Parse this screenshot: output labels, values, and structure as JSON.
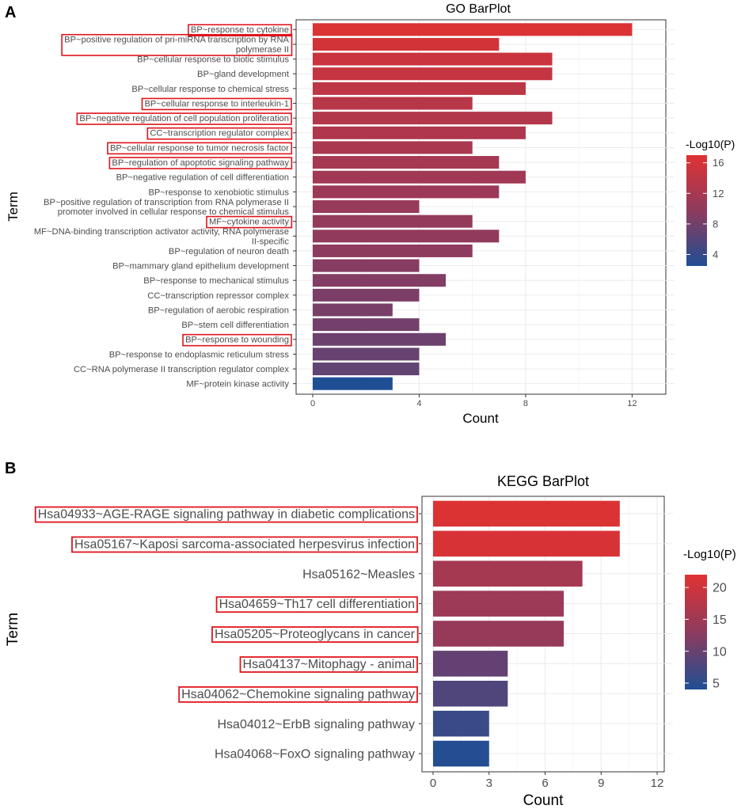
{
  "chart_data": [
    {
      "panel": "A",
      "type": "bar",
      "orientation": "horizontal",
      "title": "GO BarPlot",
      "xlabel": "Count",
      "ylabel": "Term",
      "xlim": [
        0,
        13
      ],
      "xticks": [
        0,
        4,
        8,
        12
      ],
      "legend": {
        "title": "-Log10(P)",
        "ticks": [
          4,
          8,
          12,
          16
        ],
        "range": [
          2.5,
          17
        ]
      },
      "categories": [
        [
          "BP~response to cytokine"
        ],
        [
          "BP~positive regulation of pri-miRNA transcription by RNA",
          "polymerase II"
        ],
        [
          "BP~cellular response to biotic stimulus"
        ],
        [
          "BP~gland development"
        ],
        [
          "BP~cellular response to chemical stress"
        ],
        [
          "BP~cellular response to interleukin-1"
        ],
        [
          "BP~negative regulation of cell population proliferation"
        ],
        [
          "CC~transcription regulator complex"
        ],
        [
          "BP~cellular response to tumor necrosis factor"
        ],
        [
          "BP~regulation of apoptotic signaling pathway"
        ],
        [
          "BP~negative regulation of cell differentiation"
        ],
        [
          "BP~response to xenobiotic stimulus"
        ],
        [
          "BP~positive regulation of transcription from RNA polymerase II",
          "promoter involved in cellular response to chemical stimulus"
        ],
        [
          "MF~cytokine activity"
        ],
        [
          "MF~DNA-binding transcription activator activity, RNA polymerase",
          "II-specific"
        ],
        [
          "BP~regulation of neuron death"
        ],
        [
          "BP~mammary gland epithelium development"
        ],
        [
          "BP~response to mechanical stimulus"
        ],
        [
          "CC~transcription repressor complex"
        ],
        [
          "BP~regulation of aerobic respiration"
        ],
        [
          "BP~stem cell differentiation"
        ],
        [
          "BP~response to wounding"
        ],
        [
          "BP~response to endoplasmic reticulum stress"
        ],
        [
          "CC~RNA polymerase II transcription regulator complex"
        ],
        [
          "MF~protein kinase activity"
        ]
      ],
      "values": [
        12,
        7,
        9,
        9,
        8,
        6,
        9,
        8,
        6,
        7,
        8,
        7,
        4,
        6,
        7,
        6,
        4,
        5,
        4,
        3,
        4,
        5,
        4,
        4,
        3
      ],
      "neg_log10_p": [
        16.6,
        15.8,
        15.0,
        14.5,
        13.9,
        13.4,
        13.0,
        12.6,
        12.2,
        11.8,
        11.4,
        11.0,
        10.6,
        10.3,
        10.0,
        9.7,
        9.3,
        9.0,
        8.6,
        8.3,
        8.0,
        7.6,
        7.2,
        6.8,
        2.5
      ],
      "highlighted": [
        true,
        true,
        false,
        false,
        false,
        true,
        true,
        true,
        true,
        true,
        false,
        false,
        false,
        true,
        false,
        false,
        false,
        false,
        false,
        false,
        false,
        true,
        false,
        false,
        false
      ]
    },
    {
      "panel": "B",
      "type": "bar",
      "orientation": "horizontal",
      "title": "KEGG BarPlot",
      "xlabel": "Count",
      "ylabel": "Term",
      "xlim": [
        0,
        12
      ],
      "xticks": [
        0,
        3,
        6,
        9,
        12
      ],
      "legend": {
        "title": "-Log10(P)",
        "ticks": [
          5,
          10,
          15,
          20
        ],
        "range": [
          4,
          22
        ]
      },
      "categories": [
        [
          "Hsa04933~AGE-RAGE signaling pathway in diabetic complications"
        ],
        [
          "Hsa05167~Kaposi sarcoma-associated herpesvirus infection"
        ],
        [
          "Hsa05162~Measles"
        ],
        [
          "Hsa04659~Th17 cell differentiation"
        ],
        [
          "Hsa05205~Proteoglycans in cancer"
        ],
        [
          "Hsa04137~Mitophagy - animal"
        ],
        [
          "Hsa04062~Chemokine signaling pathway"
        ],
        [
          "Hsa04012~ErbB signaling pathway"
        ],
        [
          "Hsa04068~FoxO signaling pathway"
        ]
      ],
      "values": [
        10,
        10,
        8,
        7,
        7,
        4,
        4,
        3,
        3
      ],
      "neg_log10_p": [
        21.5,
        21.0,
        15.5,
        14.5,
        14.0,
        9.5,
        8.0,
        6.0,
        4.5
      ],
      "highlighted": [
        true,
        true,
        false,
        true,
        true,
        true,
        true,
        false,
        false
      ]
    }
  ],
  "colors": {
    "low": "#1f4e94",
    "high": "#e03232",
    "highlight_box": "#e0141c",
    "panel_bg": "#ffffff",
    "grid": "#ebebeb"
  }
}
